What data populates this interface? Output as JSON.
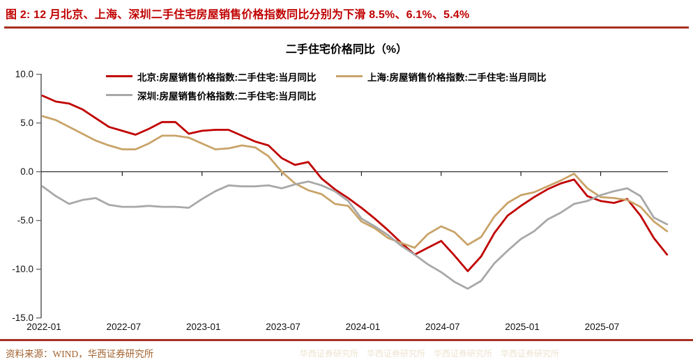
{
  "header": {
    "title": "图 2: 12 月北京、上海、深圳二手住宅房屋销售价格指数同比分别为下滑 8.5%、6.1%、5.4%"
  },
  "footer": {
    "source": "资料来源：WIND，华西证券研究所",
    "watermark": "华西证券研究所　华西证券研究所　华西证券研究所　华西证券研究所"
  },
  "colors": {
    "accent_red": "#C00000",
    "rule_red": "#A63022",
    "source_brown": "#A2622E",
    "axis_gray": "#595959"
  },
  "chart_data": {
    "type": "line",
    "title": "二手住宅价格同比（%）",
    "grid": false,
    "legend_position": "top",
    "ylim": [
      -15,
      10
    ],
    "y_axis": {
      "ticks": [
        10,
        5,
        0,
        -5,
        -10,
        -15
      ],
      "labels": [
        "10.0",
        "5.0",
        "0.0",
        "-5.0",
        "-10.0",
        "-15.0"
      ]
    },
    "x_axis": {
      "tick_indices": [
        0,
        6,
        12,
        18,
        24,
        30,
        36,
        42
      ],
      "tick_labels": [
        "2022-01",
        "2022-07",
        "2023-01",
        "2023-07",
        "2024-01",
        "2024-07",
        "2025-01",
        "2025-07"
      ]
    },
    "months": [
      "2022-01",
      "2022-02",
      "2022-03",
      "2022-04",
      "2022-05",
      "2022-06",
      "2022-07",
      "2022-08",
      "2022-09",
      "2022-10",
      "2022-11",
      "2022-12",
      "2023-01",
      "2023-02",
      "2023-03",
      "2023-04",
      "2023-05",
      "2023-06",
      "2023-07",
      "2023-08",
      "2023-09",
      "2023-10",
      "2023-11",
      "2023-12",
      "2024-01",
      "2024-02",
      "2024-03",
      "2024-04",
      "2024-05",
      "2024-06",
      "2024-07",
      "2024-08",
      "2024-09",
      "2024-10",
      "2024-11",
      "2024-12",
      "2025-01",
      "2025-02",
      "2025-03",
      "2025-04",
      "2025-05",
      "2025-06",
      "2025-07",
      "2025-08",
      "2025-09",
      "2025-10",
      "2025-11",
      "2025-12"
    ],
    "series": [
      {
        "key": "beijing",
        "name": "北京:房屋销售价格指数:二手住宅:当月同比",
        "color": "#C00000",
        "values": [
          7.8,
          7.2,
          7.0,
          6.4,
          5.5,
          4.6,
          4.2,
          3.8,
          4.4,
          5.1,
          5.1,
          3.9,
          4.2,
          4.3,
          4.3,
          3.7,
          3.1,
          2.7,
          1.4,
          0.7,
          1.0,
          -0.7,
          -1.8,
          -2.7,
          -3.7,
          -4.8,
          -6.0,
          -7.3,
          -8.5,
          -7.8,
          -7.1,
          -8.6,
          -10.2,
          -8.7,
          -6.3,
          -4.5,
          -3.5,
          -2.6,
          -1.8,
          -1.2,
          -0.8,
          -2.5,
          -3.0,
          -3.2,
          -2.8,
          -4.5,
          -6.8,
          -8.5
        ]
      },
      {
        "key": "shanghai",
        "name": "上海:房屋销售价格指数:二手住宅:当月同比",
        "color": "#C9A368",
        "values": [
          5.7,
          5.3,
          4.6,
          3.9,
          3.2,
          2.7,
          2.3,
          2.3,
          2.9,
          3.7,
          3.7,
          3.5,
          2.9,
          2.3,
          2.4,
          2.7,
          2.5,
          1.6,
          0.0,
          -1.2,
          -1.9,
          -2.3,
          -3.3,
          -3.5,
          -5.1,
          -5.8,
          -6.8,
          -7.3,
          -7.8,
          -6.4,
          -5.6,
          -6.2,
          -7.5,
          -6.7,
          -4.6,
          -3.2,
          -2.4,
          -2.1,
          -1.5,
          -0.9,
          -0.2,
          -1.7,
          -2.6,
          -2.7,
          -2.9,
          -3.6,
          -5.1,
          -6.1
        ]
      },
      {
        "key": "shenzhen",
        "name": "深圳:房屋销售价格指数:二手住宅:当月同比",
        "color": "#A8A8A8",
        "values": [
          -1.5,
          -2.5,
          -3.3,
          -2.9,
          -2.7,
          -3.4,
          -3.6,
          -3.6,
          -3.5,
          -3.6,
          -3.6,
          -3.7,
          -2.8,
          -2.0,
          -1.4,
          -1.5,
          -1.5,
          -1.4,
          -1.7,
          -1.3,
          -1.0,
          -1.4,
          -2.0,
          -3.0,
          -4.8,
          -5.6,
          -6.5,
          -7.6,
          -8.5,
          -9.5,
          -10.3,
          -11.3,
          -12.0,
          -11.2,
          -9.4,
          -8.1,
          -6.9,
          -6.1,
          -4.9,
          -4.2,
          -3.3,
          -3.0,
          -2.4,
          -2.0,
          -1.7,
          -2.5,
          -4.7,
          -5.4
        ]
      }
    ]
  }
}
